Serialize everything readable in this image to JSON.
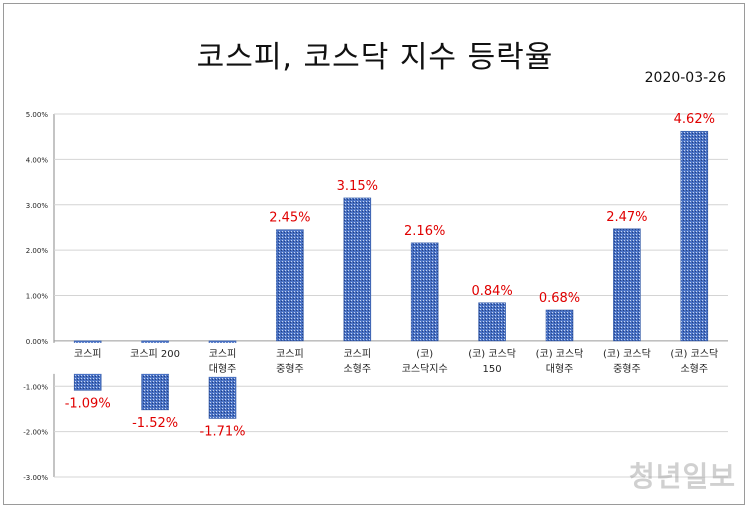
{
  "title": "코스피, 코스닥 지수 등락율",
  "date": "2020-03-26",
  "watermark": "청년일보",
  "colors": {
    "bar": "#4a72c4",
    "label": "#e00000",
    "grid": "#d4d4d4"
  },
  "chart_data": {
    "type": "bar",
    "title": "코스피, 코스닥 지수 등락율",
    "xlabel": "",
    "ylabel": "",
    "ylim": [
      -3,
      5
    ],
    "yticks": [
      {
        "v": 5,
        "label": "5.00%"
      },
      {
        "v": 4,
        "label": "4.00%"
      },
      {
        "v": 3,
        "label": "3.00%"
      },
      {
        "v": 2,
        "label": "2.00%"
      },
      {
        "v": 1,
        "label": "1.00%"
      },
      {
        "v": 0,
        "label": "0.00%"
      },
      {
        "v": -1,
        "label": "-1.00%"
      },
      {
        "v": -2,
        "label": "-2.00%"
      },
      {
        "v": -3,
        "label": "-3.00%"
      }
    ],
    "grid": true,
    "categories": [
      [
        "코스피"
      ],
      [
        "코스피 200"
      ],
      [
        "코스피",
        "대형주"
      ],
      [
        "코스피",
        "중형주"
      ],
      [
        "코스피",
        "소형주"
      ],
      [
        "(코)",
        "코스닥지수"
      ],
      [
        "(코) 코스닥",
        "150"
      ],
      [
        "(코) 코스닥",
        "대형주"
      ],
      [
        "(코) 코스닥",
        "중형주"
      ],
      [
        "(코) 코스닥",
        "소형주"
      ]
    ],
    "values": [
      -1.09,
      -1.52,
      -1.71,
      2.45,
      3.15,
      2.16,
      0.84,
      0.68,
      2.47,
      4.62
    ],
    "data_labels": [
      "-1.09%",
      "-1.52%",
      "-1.71%",
      "2.45%",
      "3.15%",
      "2.16%",
      "0.84%",
      "0.68%",
      "2.47%",
      "4.62%"
    ]
  }
}
